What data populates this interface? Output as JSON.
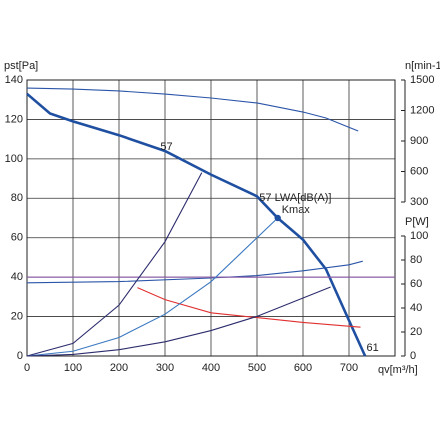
{
  "chart_data": {
    "type": "line",
    "x_label": "qv[m³/h]",
    "y_label": "pst[Pa]",
    "y2_label": "n[min-1]",
    "y3_label": "P[W]",
    "xlim": [
      0,
      800
    ],
    "xticks": [
      0,
      100,
      200,
      300,
      400,
      500,
      600,
      700
    ],
    "ylim": [
      0,
      140
    ],
    "yticks": [
      0,
      20,
      40,
      60,
      80,
      100,
      120,
      140
    ],
    "y2lim": [
      300,
      1500
    ],
    "y2ticks": [
      300,
      600,
      900,
      1200,
      1500
    ],
    "y3lim": [
      0,
      100
    ],
    "y3ticks": [
      0,
      20,
      40,
      60,
      80,
      100
    ],
    "grid": true,
    "series": [
      {
        "color": "#1f4fa0",
        "axis": "y",
        "x": [
          0,
          50,
          100,
          200,
          300,
          400,
          500,
          545,
          600,
          650,
          700,
          735
        ],
        "values": [
          133,
          123,
          119,
          112,
          104,
          92,
          81,
          70,
          59,
          44,
          18,
          0
        ]
      },
      {
        "color": "#2b55a8",
        "axis": "y2",
        "x": [
          0,
          100,
          200,
          300,
          400,
          500,
          600,
          650,
          720
        ],
        "values": [
          1421,
          1411,
          1392,
          1362,
          1323,
          1274,
          1185,
          1126,
          998
        ]
      },
      {
        "color": "#2b55a8",
        "axis": "y3",
        "x": [
          0,
          200,
          400,
          500,
          600,
          700,
          730
        ],
        "values": [
          61,
          62,
          65,
          67,
          71,
          76,
          79
        ]
      },
      {
        "color": "#e03030",
        "axis": "y3",
        "x": [
          240,
          300,
          400,
          500,
          600,
          725
        ],
        "values": [
          57,
          47,
          36,
          32,
          28,
          24
        ]
      },
      {
        "color": "#8a5aa8",
        "axis": "y",
        "x": [
          0,
          800
        ],
        "values": [
          40,
          40
        ]
      },
      {
        "color": "#2d2d6e",
        "axis": "y",
        "x": [
          0,
          100,
          200,
          300,
          380
        ],
        "values": [
          0,
          6.4,
          25.8,
          58,
          93
        ]
      },
      {
        "color": "#3a78c0",
        "axis": "y",
        "x": [
          0,
          100,
          200,
          300,
          400,
          545
        ],
        "values": [
          0,
          2.4,
          9.4,
          21.2,
          37.7,
          70
        ]
      },
      {
        "color": "#2d2d6e",
        "axis": "y",
        "x": [
          0,
          100,
          200,
          300,
          400,
          500,
          660
        ],
        "values": [
          0,
          0.8,
          3.2,
          7.2,
          12.9,
          20.1,
          35
        ]
      }
    ],
    "points": [
      {
        "label": "Kmax",
        "x": 545,
        "y": 70,
        "color": "#1f4fa0"
      }
    ],
    "annotations": [
      {
        "text": "57",
        "x": 290,
        "y": 106
      },
      {
        "text": "57 LWA[dB(A)]",
        "x": 505,
        "y": 80
      },
      {
        "text": "61",
        "x": 738,
        "y": 4
      }
    ]
  }
}
